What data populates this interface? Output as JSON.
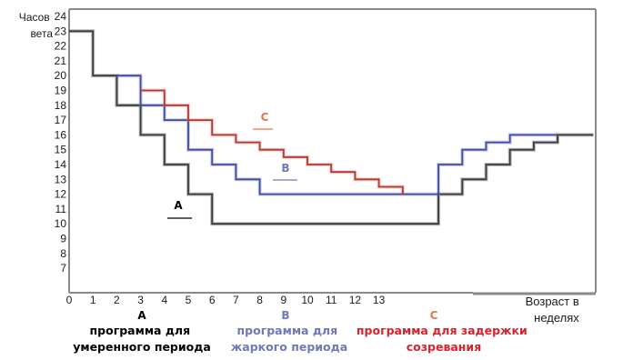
{
  "chart_data": {
    "type": "line",
    "ylabel": "Часов\nвета",
    "xlabel": "Возраст в\nнеделях",
    "x_ticks": [
      "0",
      "1",
      "2",
      "3",
      "4",
      "5",
      "6",
      "7",
      "8",
      "9",
      "10",
      "11",
      "12",
      "13"
    ],
    "y_ticks": [
      "7",
      "8",
      "9",
      "10",
      "11",
      "12",
      "13",
      "14",
      "15",
      "16",
      "17",
      "18",
      "19",
      "20",
      "21",
      "22",
      "23",
      "24"
    ],
    "ylim": [
      6,
      24
    ],
    "xlim": [
      0,
      22
    ],
    "grid": false,
    "colors": {
      "frame": "#8a8a8a",
      "A": "#3b3b3b",
      "B": "#6f79b8",
      "B_line": "#3f49a8",
      "C": "#e2784c",
      "C_line": "#b13838",
      "C_legend": "#d8232a",
      "legend_A": "#000000"
    },
    "series": [
      {
        "name": "A",
        "color": "#3b3b3b",
        "points": [
          [
            0,
            23
          ],
          [
            1,
            23
          ],
          [
            1,
            20
          ],
          [
            2,
            20
          ],
          [
            2,
            18
          ],
          [
            3,
            18
          ],
          [
            3,
            16
          ],
          [
            4,
            16
          ],
          [
            4,
            14
          ],
          [
            5,
            14
          ],
          [
            5,
            12
          ],
          [
            6,
            12
          ],
          [
            6,
            10
          ],
          [
            15.5,
            10
          ],
          [
            15.5,
            12
          ],
          [
            16.5,
            12
          ],
          [
            16.5,
            13
          ],
          [
            17.5,
            13
          ],
          [
            17.5,
            14
          ],
          [
            18.5,
            14
          ],
          [
            18.5,
            15
          ],
          [
            19.5,
            15
          ],
          [
            19.5,
            15.5
          ],
          [
            20.5,
            15.5
          ],
          [
            20.5,
            16
          ],
          [
            22,
            16
          ]
        ]
      },
      {
        "name": "B",
        "color": "#3f49a8",
        "points": [
          [
            2,
            20
          ],
          [
            3,
            20
          ],
          [
            3,
            18
          ],
          [
            4,
            18
          ],
          [
            4,
            17
          ],
          [
            5,
            17
          ],
          [
            5,
            15
          ],
          [
            6,
            15
          ],
          [
            6,
            14
          ],
          [
            7,
            14
          ],
          [
            7,
            13
          ],
          [
            8,
            13
          ],
          [
            8,
            12
          ],
          [
            15.5,
            12
          ],
          [
            15.5,
            14
          ],
          [
            16.5,
            14
          ],
          [
            16.5,
            15
          ],
          [
            17.5,
            15
          ],
          [
            17.5,
            15.5
          ],
          [
            18.5,
            15.5
          ],
          [
            18.5,
            16
          ],
          [
            20.5,
            16
          ]
        ]
      },
      {
        "name": "C",
        "color": "#b13838",
        "points": [
          [
            3,
            19
          ],
          [
            4,
            19
          ],
          [
            4,
            18
          ],
          [
            5,
            18
          ],
          [
            5,
            17
          ],
          [
            6,
            17
          ],
          [
            6,
            16
          ],
          [
            7,
            16
          ],
          [
            7,
            15.5
          ],
          [
            8,
            15.5
          ],
          [
            8,
            15
          ],
          [
            9,
            15
          ],
          [
            9,
            14.5
          ],
          [
            10,
            14.5
          ],
          [
            10,
            14
          ],
          [
            11,
            14
          ],
          [
            11,
            13.5
          ],
          [
            12,
            13.5
          ],
          [
            12,
            13
          ],
          [
            13,
            13
          ],
          [
            13,
            12.5
          ],
          [
            14,
            12.5
          ],
          [
            14,
            12
          ]
        ]
      }
    ],
    "annotations": [
      {
        "id": "A",
        "text": "A"
      },
      {
        "id": "B",
        "text": "B"
      },
      {
        "id": "C",
        "text": "C"
      }
    ],
    "legend": [
      {
        "letter": "A",
        "text": "программа для умеренного периода",
        "lines": [
          "программа для",
          "умеренного периода"
        ]
      },
      {
        "letter": "B",
        "text": "программа для жаркого периода",
        "lines": [
          "программа для",
          "жаркого периода"
        ]
      },
      {
        "letter": "C",
        "text": "программа для задержки созревания",
        "lines": [
          "программа для задержки",
          "созревания"
        ]
      }
    ]
  }
}
